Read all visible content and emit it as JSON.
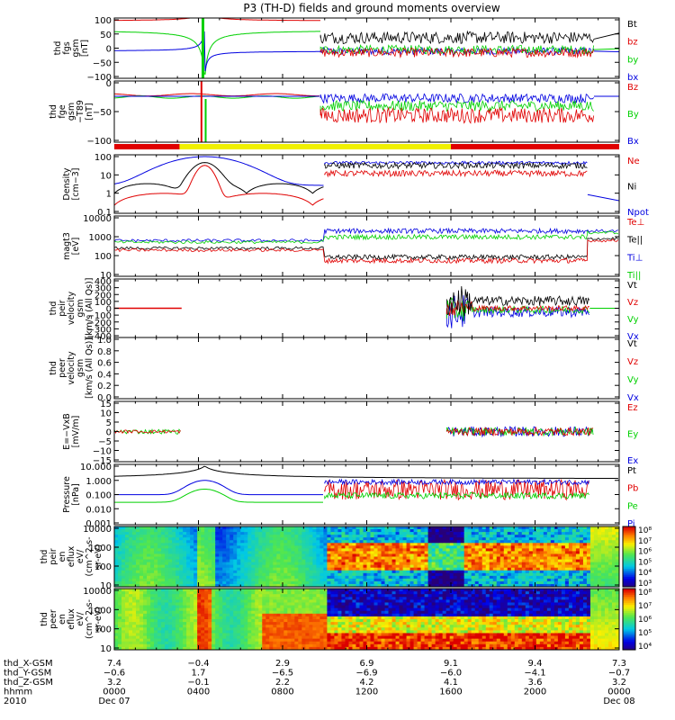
{
  "title": "P3 (TH-D) fields and ground moments overview",
  "colors": {
    "black": "#000000",
    "red": "#e00000",
    "green": "#00d000",
    "blue": "#0000e0",
    "yellow": "#f0f000"
  },
  "chart_data": [
    {
      "name": "fgs",
      "type": "line",
      "ylabel": [
        "thd",
        "fgs",
        "gsm",
        "[nT]"
      ],
      "ylim": [
        -100,
        100
      ],
      "yticks": [
        "100",
        "50",
        "0",
        "−50",
        "−100"
      ],
      "series": [
        {
          "name": "Bt",
          "color": "#000000"
        },
        {
          "name": "bz",
          "color": "#e00000"
        },
        {
          "name": "by",
          "color": "#00d000"
        },
        {
          "name": "bx",
          "color": "#0000e0"
        }
      ]
    },
    {
      "name": "fge",
      "type": "line",
      "ylabel": [
        "thd",
        "fge",
        "gsm",
        "−T89",
        "[nT]"
      ],
      "ylim": [
        -120,
        40
      ],
      "yticks": [
        "0",
        "−50",
        "−100"
      ],
      "series": [
        {
          "name": "Bz",
          "color": "#e00000"
        },
        {
          "name": "By",
          "color": "#00d000"
        },
        {
          "name": "Bx",
          "color": "#0000e0"
        }
      ]
    },
    {
      "name": "density",
      "type": "line",
      "scale": "log",
      "ylabel": [
        "Density",
        "[cm−3]"
      ],
      "ylim": [
        0.03,
        200
      ],
      "yticks": [
        "100",
        "10",
        "1",
        "0.1"
      ],
      "series": [
        {
          "name": "Ne",
          "color": "#e00000"
        },
        {
          "name": "Ni",
          "color": "#000000"
        },
        {
          "name": "Npot",
          "color": "#0000e0"
        }
      ]
    },
    {
      "name": "temperature",
      "type": "line",
      "scale": "log",
      "ylabel": [
        "magt3",
        "[eV]"
      ],
      "ylim": [
        10,
        10000
      ],
      "yticks": [
        "10000",
        "1000",
        "100",
        "10"
      ],
      "series": [
        {
          "name": "Te⊥",
          "color": "#e00000"
        },
        {
          "name": "Te||",
          "color": "#000000"
        },
        {
          "name": "Ti⊥",
          "color": "#0000e0"
        },
        {
          "name": "Ti||",
          "color": "#00d000"
        }
      ]
    },
    {
      "name": "peir-velocity",
      "type": "line",
      "ylabel": [
        "thd",
        "peir",
        "velocity",
        "gsm",
        "[km/s (All Qs)]"
      ],
      "ylim": [
        -400,
        400
      ],
      "yticks": [
        "400",
        "300",
        "200",
        "100",
        "0",
        "−100",
        "−200",
        "−300",
        "−400"
      ],
      "series": [
        {
          "name": "Vt",
          "color": "#000000"
        },
        {
          "name": "Vz",
          "color": "#e00000"
        },
        {
          "name": "Vy",
          "color": "#00d000"
        },
        {
          "name": "Vx",
          "color": "#0000e0"
        }
      ]
    },
    {
      "name": "peer-velocity",
      "type": "line",
      "ylabel": [
        "thd",
        "peer",
        "velocity",
        "gsm",
        "[km/s (All Qs)]"
      ],
      "ylim": [
        0,
        1
      ],
      "yticks": [
        "1.0",
        "0.8",
        "0.6",
        "0.4",
        "0.2",
        "0.0"
      ],
      "series": [
        {
          "name": "Vt",
          "color": "#000000"
        },
        {
          "name": "Vz",
          "color": "#e00000"
        },
        {
          "name": "Vy",
          "color": "#00d000"
        },
        {
          "name": "Vx",
          "color": "#0000e0"
        }
      ]
    },
    {
      "name": "efield",
      "type": "line",
      "ylabel": [
        "E=−VxB",
        "[mV/m]"
      ],
      "ylim": [
        -15,
        15
      ],
      "yticks": [
        "15",
        "10",
        "5",
        "0",
        "−5",
        "−10",
        "−15"
      ],
      "series": [
        {
          "name": "Ez",
          "color": "#e00000"
        },
        {
          "name": "Ey",
          "color": "#00d000"
        },
        {
          "name": "Ex",
          "color": "#0000e0"
        }
      ]
    },
    {
      "name": "pressure",
      "type": "line",
      "scale": "log",
      "ylabel": [
        "Pressure",
        "[nPa]"
      ],
      "ylim": [
        0.0005,
        30
      ],
      "yticks": [
        "10.000",
        "1.000",
        "0.100",
        "0.010",
        "0.001"
      ],
      "series": [
        {
          "name": "Pt",
          "color": "#000000"
        },
        {
          "name": "Pb",
          "color": "#e00000"
        },
        {
          "name": "Pe",
          "color": "#00d000"
        },
        {
          "name": "Pi",
          "color": "#0000e0"
        }
      ]
    },
    {
      "name": "peir-en-eflux",
      "type": "heatmap",
      "scale": "log",
      "ylabel": [
        "thd",
        "peir",
        "en",
        "eflux",
        "eV/",
        "(cm^2-s-",
        "sr-eV)"
      ],
      "ylim": [
        7,
        20000
      ],
      "yticks": [
        "10000",
        "1000",
        "100",
        "10"
      ],
      "colorbar": {
        "labels": [
          "10⁸",
          "10⁷",
          "10⁶",
          "10⁵",
          "10⁴",
          "10³"
        ]
      }
    },
    {
      "name": "peer-en-eflux",
      "type": "heatmap",
      "scale": "log",
      "ylabel": [
        "thd",
        "peer",
        "en",
        "eflux",
        "eV/",
        "(cm^2-s-",
        "sr-eV)"
      ],
      "ylim": [
        7,
        20000
      ],
      "yticks": [
        "10000",
        "1000",
        "100",
        "10"
      ],
      "colorbar": {
        "labels": [
          "10⁸",
          "10⁷",
          "10⁶",
          "10⁵",
          "10⁴"
        ]
      }
    }
  ],
  "xaxis": {
    "row_labels": [
      "thd_X-GSM",
      "thd_Y-GSM",
      "thd_Z-GSM",
      "hhmm",
      "2010"
    ],
    "ticks": [
      {
        "x": [
          "7.4",
          "−0.6",
          "3.2",
          "0000",
          "Dec 07"
        ]
      },
      {
        "x": [
          "−0.4",
          "1.7",
          "−0.1",
          "0400",
          ""
        ]
      },
      {
        "x": [
          "2.9",
          "−6.5",
          "2.2",
          "0800",
          ""
        ]
      },
      {
        "x": [
          "6.9",
          "−6.9",
          "4.2",
          "1200",
          ""
        ]
      },
      {
        "x": [
          "9.1",
          "−6.0",
          "4.1",
          "1600",
          ""
        ]
      },
      {
        "x": [
          "9.4",
          "−4.1",
          "3.6",
          "2000",
          ""
        ]
      },
      {
        "x": [
          "7.3",
          "−0.7",
          "3.2",
          "0000",
          "Dec 08"
        ]
      }
    ]
  }
}
